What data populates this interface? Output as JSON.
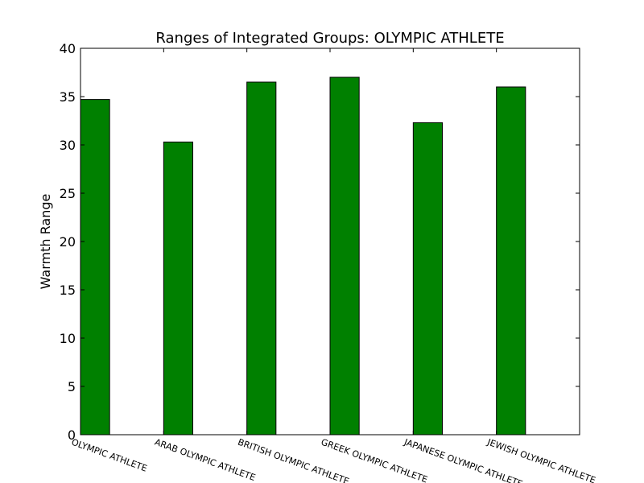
{
  "chart_data": {
    "type": "bar",
    "title": "Ranges of Integrated Groups: OLYMPIC ATHLETE",
    "xlabel": "",
    "ylabel": "Warmth Range",
    "ylim": [
      0,
      40
    ],
    "yticks": [
      "0",
      "5",
      "10",
      "15",
      "20",
      "25",
      "30",
      "35",
      "40"
    ],
    "categories": [
      "OLYMPIC ATHLETE",
      "ARAB OLYMPIC ATHLETE",
      "BRITISH OLYMPIC ATHLETE",
      "GREEK OLYMPIC ATHLETE",
      "JAPANESE OLYMPIC ATHLETE",
      "JEWISH OLYMPIC ATHLETE"
    ],
    "values": [
      34.7,
      30.3,
      36.5,
      37.0,
      32.3,
      36.0
    ],
    "bar_color": "#008000",
    "edge_color": "#000000",
    "grid": false
  }
}
